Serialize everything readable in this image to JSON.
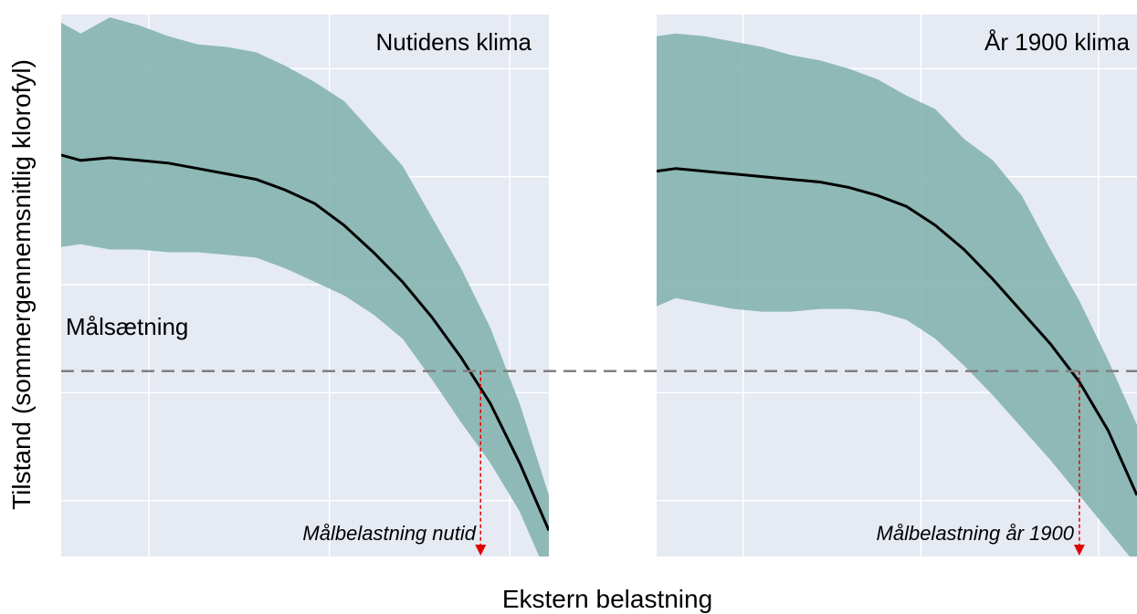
{
  "chart_data": {
    "type": "area",
    "ylabel": "Tilstand (sommergennemsnitlig klorofyl)",
    "xlabel": "Ekstern belastning",
    "target": {
      "label": "Målsætning",
      "y": 3.4
    },
    "ylim": [
      0,
      10
    ],
    "grid": true,
    "panels": [
      {
        "title": "Nutidens klima",
        "xlim": [
          0,
          100
        ],
        "x": [
          0,
          4,
          10,
          16,
          22,
          28,
          34,
          40,
          46,
          52,
          58,
          64,
          70,
          76,
          82,
          88,
          94,
          100
        ],
        "mean": [
          7.4,
          7.3,
          7.35,
          7.3,
          7.25,
          7.15,
          7.05,
          6.95,
          6.75,
          6.5,
          6.1,
          5.6,
          5.05,
          4.4,
          3.65,
          2.8,
          1.7,
          0.45
        ],
        "upper": [
          9.85,
          9.65,
          9.95,
          9.8,
          9.6,
          9.45,
          9.4,
          9.3,
          9.05,
          8.75,
          8.4,
          7.8,
          7.2,
          6.25,
          5.3,
          4.2,
          2.8,
          1.1
        ],
        "lower": [
          5.7,
          5.75,
          5.65,
          5.65,
          5.6,
          5.6,
          5.55,
          5.5,
          5.3,
          5.05,
          4.8,
          4.45,
          4.0,
          3.25,
          2.45,
          1.7,
          0.8,
          -0.45
        ],
        "target_crossing_x": 86,
        "target_annotation": "Målbelastning nutid"
      },
      {
        "title": "År 1900 klima",
        "xlim": [
          0,
          100
        ],
        "x": [
          0,
          4,
          10,
          16,
          22,
          28,
          34,
          40,
          46,
          52,
          58,
          64,
          70,
          76,
          82,
          88,
          94,
          100
        ],
        "mean": [
          7.1,
          7.15,
          7.1,
          7.05,
          7.0,
          6.95,
          6.9,
          6.8,
          6.65,
          6.45,
          6.1,
          5.65,
          5.1,
          4.5,
          3.9,
          3.2,
          2.3,
          1.1
        ],
        "upper": [
          9.6,
          9.65,
          9.6,
          9.5,
          9.4,
          9.25,
          9.15,
          9.0,
          8.8,
          8.5,
          8.25,
          7.7,
          7.3,
          6.65,
          5.65,
          4.7,
          3.6,
          2.4
        ],
        "lower": [
          4.6,
          4.75,
          4.65,
          4.55,
          4.5,
          4.5,
          4.55,
          4.55,
          4.5,
          4.35,
          4.0,
          3.5,
          2.95,
          2.35,
          1.75,
          1.1,
          0.45,
          -0.2
        ],
        "target_crossing_x": 88,
        "target_annotation": "Målbelastning år 1900"
      }
    ]
  },
  "colors": {
    "panel_bg": "#e5eaf3",
    "grid": "#ffffff",
    "band": "#7fb0aa",
    "mean_line": "#000000",
    "target_line": "#808080",
    "arrow": "#e00000"
  }
}
